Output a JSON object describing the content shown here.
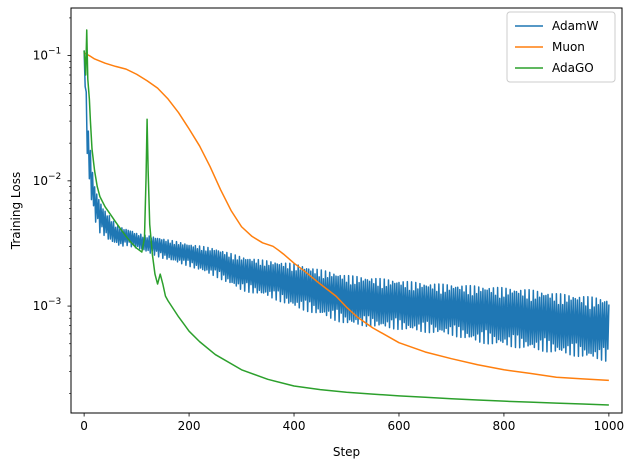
{
  "chart_data": {
    "type": "line",
    "title": "",
    "xlabel": "Step",
    "ylabel": "Training Loss",
    "yscale": "log",
    "xlim": [
      -25,
      1025
    ],
    "ylim": [
      0.00014,
      0.24
    ],
    "xticks": [
      0,
      200,
      400,
      600,
      800,
      1000
    ],
    "yticks": [
      {
        "value": 0.001,
        "label": "10",
        "exp": "−3"
      },
      {
        "value": 0.01,
        "label": "10",
        "exp": "−2"
      },
      {
        "value": 0.1,
        "label": "10",
        "exp": "−1"
      }
    ],
    "grid": false,
    "legend_position": "top-right",
    "series": [
      {
        "name": "AdamW",
        "color": "#1f77b4",
        "x": [
          0,
          5,
          10,
          15,
          20,
          30,
          40,
          50,
          60,
          70,
          80,
          90,
          100,
          150,
          200,
          250,
          300,
          350,
          400,
          450,
          500,
          550,
          600,
          650,
          700,
          750,
          800,
          850,
          900,
          950,
          1000
        ],
        "y": [
          0.11,
          0.03,
          0.015,
          0.01,
          0.007,
          0.0055,
          0.0048,
          0.0043,
          0.0039,
          0.0037,
          0.0036,
          0.0035,
          0.0034,
          0.003,
          0.0026,
          0.0023,
          0.0019,
          0.0017,
          0.0015,
          0.0013,
          0.0011,
          0.00105,
          0.001,
          0.00095,
          0.0009,
          0.00085,
          0.0008,
          0.00075,
          0.0007,
          0.00065,
          0.0006
        ],
        "noise_lower": [
          1.0,
          0.6,
          0.6,
          0.65,
          0.7,
          0.7,
          0.75,
          0.75,
          0.8,
          0.8,
          0.85,
          0.85,
          0.85,
          0.8,
          0.8,
          0.75,
          0.7,
          0.7,
          0.65,
          0.65,
          0.65,
          0.65,
          0.65,
          0.65,
          0.65,
          0.6,
          0.6,
          0.6,
          0.6,
          0.6,
          0.6
        ],
        "noise_upper": [
          1.0,
          1.4,
          1.4,
          1.35,
          1.3,
          1.25,
          1.2,
          1.2,
          1.15,
          1.15,
          1.15,
          1.15,
          1.12,
          1.15,
          1.2,
          1.25,
          1.3,
          1.35,
          1.45,
          1.5,
          1.6,
          1.6,
          1.6,
          1.6,
          1.65,
          1.7,
          1.75,
          1.8,
          1.8,
          1.85,
          1.9
        ]
      },
      {
        "name": "Muon",
        "color": "#ff7f0e",
        "x": [
          0,
          10,
          20,
          40,
          60,
          80,
          100,
          120,
          140,
          160,
          180,
          200,
          220,
          240,
          260,
          280,
          300,
          320,
          340,
          350,
          360,
          370,
          380,
          400,
          420,
          450,
          480,
          500,
          520,
          550,
          600,
          650,
          700,
          750,
          800,
          850,
          900,
          950,
          1000
        ],
        "y": [
          0.105,
          0.1,
          0.094,
          0.087,
          0.082,
          0.078,
          0.071,
          0.063,
          0.055,
          0.045,
          0.035,
          0.026,
          0.019,
          0.013,
          0.0085,
          0.0058,
          0.0043,
          0.0036,
          0.0032,
          0.0031,
          0.003,
          0.0028,
          0.0026,
          0.0022,
          0.0019,
          0.0015,
          0.0012,
          0.00098,
          0.00082,
          0.00067,
          0.00051,
          0.00043,
          0.00038,
          0.00034,
          0.00031,
          0.00029,
          0.00027,
          0.000262,
          0.000255
        ]
      },
      {
        "name": "AdaGO",
        "color": "#2ca02c",
        "x": [
          0,
          3,
          5,
          7,
          10,
          12,
          15,
          20,
          25,
          30,
          40,
          50,
          60,
          70,
          80,
          90,
          100,
          110,
          115,
          118,
          120,
          122,
          125,
          130,
          135,
          140,
          145,
          150,
          155,
          160,
          170,
          180,
          190,
          200,
          220,
          250,
          300,
          350,
          400,
          450,
          500,
          550,
          600,
          650,
          700,
          750,
          800,
          850,
          900,
          950,
          1000
        ],
        "y": [
          0.11,
          0.07,
          0.16,
          0.065,
          0.045,
          0.03,
          0.018,
          0.012,
          0.009,
          0.0075,
          0.0062,
          0.0054,
          0.0047,
          0.0041,
          0.0036,
          0.0032,
          0.0029,
          0.0027,
          0.0035,
          0.0105,
          0.031,
          0.012,
          0.0045,
          0.0026,
          0.0018,
          0.0015,
          0.0018,
          0.0015,
          0.0012,
          0.0011,
          0.00095,
          0.00082,
          0.00072,
          0.00063,
          0.00052,
          0.00041,
          0.00031,
          0.00026,
          0.00023,
          0.000215,
          0.000205,
          0.000198,
          0.000192,
          0.000187,
          0.000182,
          0.000178,
          0.000174,
          0.000171,
          0.000168,
          0.000165,
          0.000162
        ]
      }
    ]
  }
}
